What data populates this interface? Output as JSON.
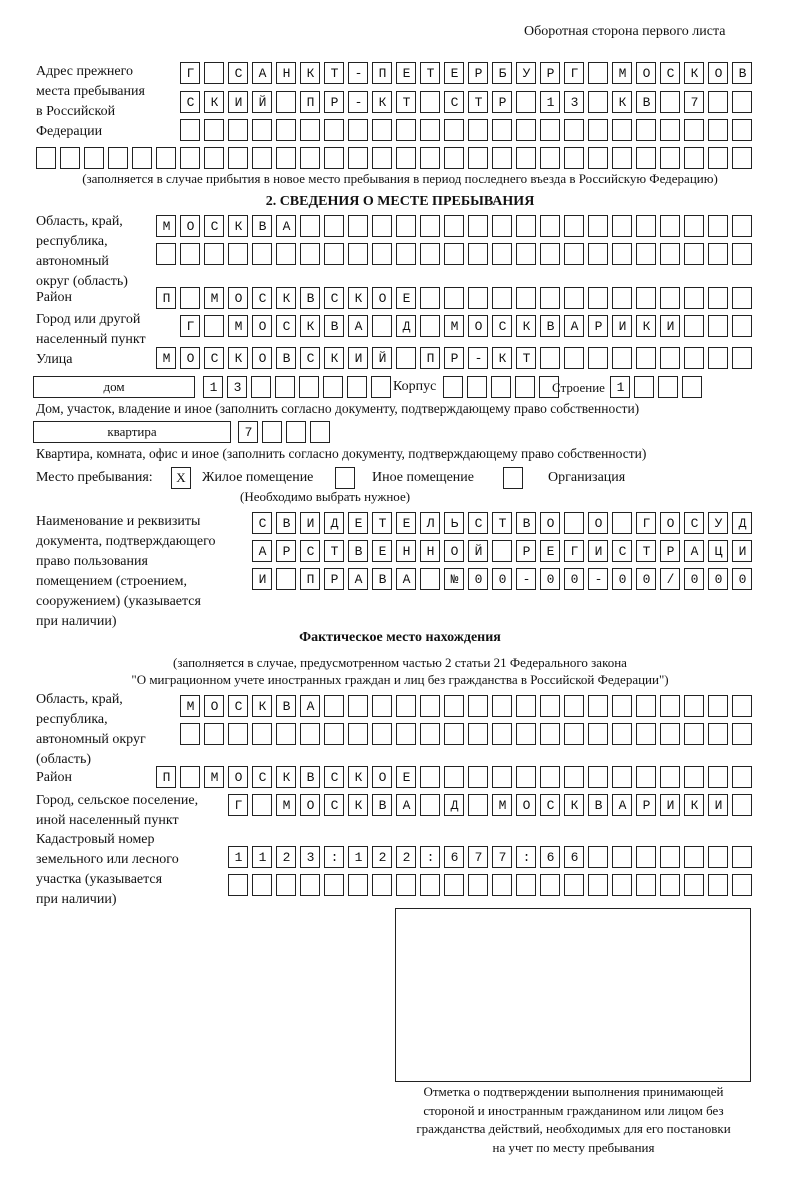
{
  "header": {
    "page_note": "Оборотная сторона первого листа"
  },
  "previous_address": {
    "label": [
      "Адрес прежнего",
      "места пребывания",
      "в Российской",
      "Федерации"
    ],
    "rows": [
      "Г САНКТ-ПЕТЕРБУРГ МОСКОВ",
      "СКИЙ ПР-КТ СТР 13 КВ 7  ",
      "                        ",
      "                              "
    ],
    "note": "(заполняется в случае прибытия в новое место пребывания в период последнего въезда в Российскую Федерацию)"
  },
  "section2": {
    "title": "2. СВЕДЕНИЯ О МЕСТЕ ПРЕБЫВАНИЯ",
    "region_label": [
      "Область, край,",
      "республика,",
      "автономный",
      "округ (область)"
    ],
    "region_rows": [
      "МОСКВА                   ",
      "                         "
    ],
    "district_label": "Район",
    "district_row": "П МОСКВСКОЕ              ",
    "city_label": [
      "Город или другой",
      "населенный пункт"
    ],
    "city_row": "Г МОСКВА Д МОСКВАРИКИ   ",
    "street_label": "Улица",
    "street_row": "МОСКОВСКИЙ ПР-КТ         ",
    "house_type": "дом",
    "house_cells": "13      ",
    "korpus_label": "Корпус",
    "korpus_cells": "     ",
    "building_label": "Строение",
    "building_cells": "1   ",
    "house_note": "Дом, участок, владение и иное (заполнить согласно документу, подтверждающему право собственности)",
    "flat_type": "квартира",
    "flat_cells": "7   ",
    "flat_note": "Квартира, комната, офис и иное (заполнить согласно документу, подтверждающему право собственности)",
    "stay_place_label": "Место пребывания:",
    "options": [
      {
        "label": "Жилое помещение",
        "mark": "X",
        "checked": true
      },
      {
        "label": "Иное помещение",
        "mark": "",
        "checked": false
      },
      {
        "label": "Организация",
        "mark": "",
        "checked": false
      }
    ],
    "choose_note": "(Необходимо выбрать нужное)",
    "doc_label": [
      "Наименование и реквизиты",
      "документа, подтверждающего",
      "право пользования",
      "помещением (строением,",
      "сооружением) (указывается",
      "при наличии)"
    ],
    "doc_rows": [
      "СВИДЕТЕЛЬСТВО О ГОСУД",
      "АРСТВЕННОЙ РЕГИСТРАЦИ",
      "И ПРАВА №00-00-00/000"
    ]
  },
  "actual": {
    "title": "Фактическое место нахождения",
    "note1": "(заполняется в случае, предусмотренном частью 2 статьи 21 Федерального закона",
    "note2": "\"О миграционном учете иностранных граждан и лиц без гражданства в Российской Федерации\")",
    "region_label": [
      "Область, край,",
      "республика,",
      "автономный округ",
      "(область)"
    ],
    "region_rows": [
      "МОСКВА                  ",
      "                        "
    ],
    "district_label": "Район",
    "district_row": "П МОСКВСКОЕ              ",
    "city_label": [
      "Город, сельское поселение,",
      "иной населенный пункт"
    ],
    "city_row": "Г МОСКВА Д МОСКВАРИКИ ",
    "cadastral_label": [
      "Кадастровый номер",
      "земельного или лесного",
      "участка (указывается",
      "при наличии)"
    ],
    "cadastral_rows": [
      "1123:122:677:66       ",
      "                      "
    ]
  },
  "confirmation": {
    "caption": [
      "Отметка о подтверждении выполнения принимающей",
      "стороной и иностранным гражданином или лицом без",
      "гражданства действий, необходимых для его постановки",
      "на учет по месту пребывания"
    ]
  }
}
